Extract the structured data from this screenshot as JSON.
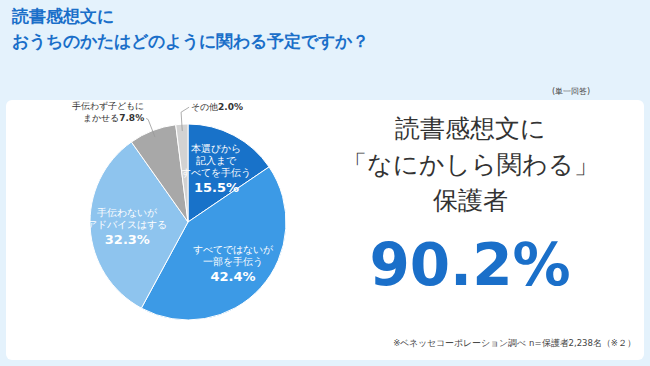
{
  "chart_data": {
    "type": "pie",
    "title": [
      "読書感想文に",
      "おうちのかたはどのように関わる予定ですか？"
    ],
    "subtitle": "(単一回答)",
    "categories": [
      [
        "本選びから",
        "記入まで",
        "すべてを手伝う"
      ],
      [
        "すべてではないが",
        "一部を手伝う"
      ],
      [
        "手伝わないが",
        "アドバイスはする"
      ],
      [
        "手伝わず子どもに",
        "まかせる"
      ],
      [
        "その他"
      ]
    ],
    "values": [
      15.5,
      42.4,
      32.3,
      7.8,
      2.0
    ],
    "value_labels": [
      "15.5%",
      "42.4%",
      "32.3%",
      "7.8%",
      "2.0%"
    ],
    "colors": [
      "#1872c9",
      "#3c9ae6",
      "#8ec4ee",
      "#a8a8a8",
      "#d2d2d2"
    ],
    "data_labels": true,
    "annotations": {
      "headline": [
        "読書感想文に",
        "「なにかしら関わる」",
        "保護者"
      ],
      "highlight": "90.2%"
    },
    "source": "※ベネッセコーポレーション調べ n=保護者2,238名（※２）"
  }
}
